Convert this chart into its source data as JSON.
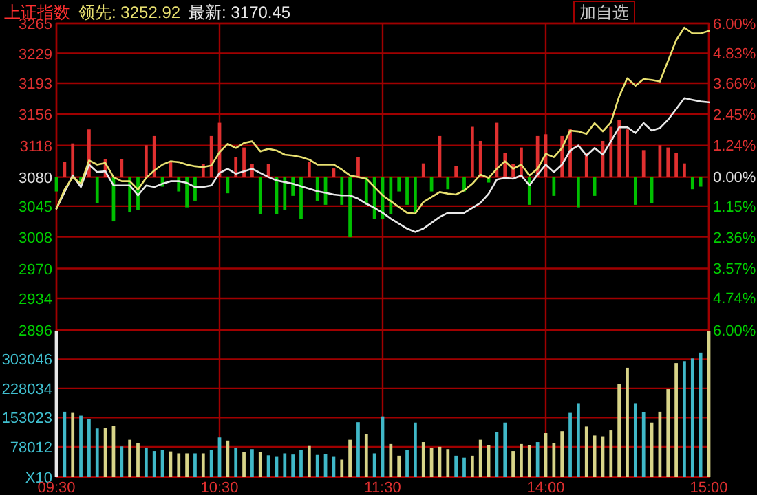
{
  "chart_data": [
    {
      "type": "line",
      "title": "上证指数",
      "annotations": [
        "领先: 3252.92",
        "最新: 3170.45",
        "加自选"
      ],
      "categories": [
        null,
        null,
        null,
        null,
        null,
        null,
        null,
        null,
        null,
        null,
        null,
        null,
        null,
        null,
        null,
        null,
        null,
        null,
        null,
        null,
        null,
        null,
        null,
        null,
        null,
        null,
        null,
        null,
        null,
        null,
        null,
        null,
        null,
        null,
        null,
        null,
        null,
        null,
        null,
        null,
        null,
        null,
        null,
        null,
        null,
        null,
        null,
        null,
        null,
        null,
        null,
        null,
        null,
        null,
        null,
        null,
        null,
        null,
        null,
        null,
        null,
        null,
        null,
        null,
        null,
        null,
        null,
        null,
        null,
        null,
        null,
        null,
        null,
        null,
        null,
        null,
        null,
        null,
        null,
        null,
        null
      ],
      "ylim": [
        2896,
        3265
      ],
      "yticks": [
        3265,
        3229,
        3193,
        3156,
        3118,
        3080,
        3045,
        3008,
        2970,
        2934,
        2896
      ],
      "y2lim": [
        -6,
        6
      ],
      "y2ticks": [
        {
          "value": 6,
          "label": "6.00%"
        },
        {
          "value": 4.83,
          "label": "4.83%"
        },
        {
          "value": 3.66,
          "label": "3.66%"
        },
        {
          "value": 2.45,
          "label": "2.45%"
        },
        {
          "value": 1.24,
          "label": "1.24%"
        },
        {
          "value": 0,
          "label": "0.00%"
        },
        {
          "value": -1.15,
          "label": "1.15%"
        },
        {
          "value": -2.36,
          "label": "2.36%"
        },
        {
          "value": -3.57,
          "label": "3.57%"
        },
        {
          "value": -4.74,
          "label": "4.74%"
        },
        {
          "value": -6,
          "label": "6.00%"
        }
      ],
      "tick_labels": "y",
      "grid": true,
      "series": [
        {
          "type": "bar",
          "axis": "y2",
          "values": [
            -0.58,
            0.58,
            1.3,
            -0.29,
            1.85,
            -1.04,
            0.68,
            -1.75,
            0.68,
            -1.4,
            -1.3,
            1.23,
            1.59,
            -0.39,
            0.58,
            -0.58,
            -1.2,
            -0.94,
            0.49,
            1.59,
            2.11,
            -0.65,
            0.78,
            1.14,
            0.49,
            -1.46,
            0.49,
            -1.46,
            -1.3,
            -0.75,
            -1.66,
            0.58,
            -0.94,
            -1.1,
            0.32,
            -1.1,
            -2.37,
            0.78,
            -1.1,
            -1.66,
            -1.66,
            -1.46,
            -0.58,
            -1.1,
            -1.4,
            0.52,
            -0.58,
            1.59,
            -0.49,
            0.42,
            -0.58,
            1.95,
            1.4,
            -0.23,
            2.11,
            0.94,
            0.49,
            1.14,
            -1.1,
            1.59,
            1.66,
            -0.75,
            1.59,
            1.85,
            -1.2,
            0.94,
            -0.75,
            1.4,
            1.95,
            2.21,
            1.85,
            -1.1,
            1.04,
            -1.04,
            1.23,
            1.14,
            0.94,
            0.52,
            -0.49,
            -0.39,
            null
          ],
          "colors": [
            "#00c000",
            "#e03030",
            "#e03030",
            "#00c000",
            "#e03030",
            "#00c000",
            "#e03030",
            "#00c000",
            "#e03030",
            "#00c000",
            "#00c000",
            "#e03030",
            "#e03030",
            "#00c000",
            "#e03030",
            "#00c000",
            "#00c000",
            "#00c000",
            "#e03030",
            "#e03030",
            "#e03030",
            "#00c000",
            "#e03030",
            "#e03030",
            "#e03030",
            "#00c000",
            "#e03030",
            "#00c000",
            "#00c000",
            "#00c000",
            "#00c000",
            "#e03030",
            "#00c000",
            "#00c000",
            "#e03030",
            "#00c000",
            "#00c000",
            "#e03030",
            "#00c000",
            "#00c000",
            "#00c000",
            "#00c000",
            "#00c000",
            "#00c000",
            "#00c000",
            "#e03030",
            "#00c000",
            "#e03030",
            "#00c000",
            "#e03030",
            "#00c000",
            "#e03030",
            "#e03030",
            "#00c000",
            "#e03030",
            "#e03030",
            "#e03030",
            "#e03030",
            "#00c000",
            "#e03030",
            "#e03030",
            "#00c000",
            "#e03030",
            "#e03030",
            "#00c000",
            "#e03030",
            "#00c000",
            "#e03030",
            "#e03030",
            "#e03030",
            "#e03030",
            "#00c000",
            "#e03030",
            "#00c000",
            "#e03030",
            "#e03030",
            "#e03030",
            "#e03030",
            "#00c000",
            "#00c000",
            null
          ]
        },
        {
          "color": "#e8e8e8",
          "values": [
            3042,
            3062,
            3082,
            3068,
            3095,
            3086,
            3087,
            3070,
            3070,
            3070,
            3058,
            3070,
            3068,
            3072,
            3075,
            3075,
            3073,
            3068,
            3068,
            3070,
            3085,
            3090,
            3084,
            3087,
            3090,
            3085,
            3080,
            3076,
            3074,
            3072,
            3069,
            3066,
            3063,
            3061,
            3059,
            3058,
            3058,
            3054,
            3048,
            3043,
            3037,
            3030,
            3024,
            3018,
            3014,
            3018,
            3025,
            3032,
            3037,
            3037,
            3037,
            3043,
            3049,
            3060,
            3077,
            3079,
            3078,
            3082,
            3070,
            3083,
            3095,
            3086,
            3095,
            3112,
            3118,
            3106,
            3115,
            3107,
            3123,
            3140,
            3140,
            3133,
            3145,
            3136,
            3139,
            3149,
            3162,
            3175,
            3173,
            3171,
            3170
          ]
        },
        {
          "color": "#e8e070",
          "values": [
            3042,
            3065,
            3080,
            3072,
            3100,
            3095,
            3097,
            3080,
            3075,
            3075,
            3065,
            3079,
            3088,
            3095,
            3099,
            3098,
            3095,
            3093,
            3092,
            3094,
            3110,
            3120,
            3115,
            3121,
            3123,
            3111,
            3114,
            3112,
            3107,
            3106,
            3104,
            3101,
            3095,
            3095,
            3095,
            3089,
            3082,
            3080,
            3078,
            3068,
            3058,
            3051,
            3044,
            3037,
            3036,
            3050,
            3056,
            3062,
            3060,
            3059,
            3064,
            3072,
            3083,
            3079,
            3090,
            3099,
            3090,
            3095,
            3082,
            3090,
            3108,
            3104,
            3115,
            3136,
            3135,
            3132,
            3145,
            3135,
            3146,
            3177,
            3199,
            3190,
            3198,
            3197,
            3195,
            3220,
            3245,
            3260,
            3253,
            3253,
            3256
          ]
        }
      ]
    },
    {
      "type": "bar",
      "categories": [
        "09:30",
        null,
        null,
        null,
        null,
        null,
        null,
        null,
        null,
        null,
        null,
        null,
        null,
        null,
        null,
        null,
        null,
        null,
        null,
        null,
        "10:30",
        null,
        null,
        null,
        null,
        null,
        null,
        null,
        null,
        null,
        null,
        null,
        null,
        null,
        null,
        null,
        null,
        null,
        null,
        null,
        "11:30",
        null,
        null,
        null,
        null,
        null,
        null,
        null,
        null,
        null,
        null,
        null,
        null,
        null,
        null,
        null,
        null,
        null,
        null,
        null,
        "14:00",
        null,
        null,
        null,
        null,
        null,
        null,
        null,
        null,
        null,
        null,
        null,
        null,
        null,
        null,
        null,
        null,
        null,
        null,
        null,
        "15:00"
      ],
      "ylim": [
        0,
        378000
      ],
      "yticks": [
        {
          "value": 0,
          "label": "X10"
        },
        78012,
        153023,
        228034,
        303046
      ],
      "grid": true,
      "values": [
        376000,
        168000,
        165000,
        158000,
        150000,
        125000,
        126000,
        132000,
        79000,
        96000,
        87000,
        76000,
        67000,
        70000,
        66000,
        61000,
        61000,
        61000,
        61000,
        70000,
        102000,
        94000,
        76000,
        64000,
        72000,
        64000,
        56000,
        52000,
        61000,
        58000,
        70000,
        80000,
        57000,
        60000,
        52000,
        45000,
        96000,
        141000,
        110000,
        61000,
        156000,
        85000,
        55000,
        70000,
        140000,
        90000,
        75000,
        78000,
        72000,
        55000,
        50000,
        55000,
        96000,
        83000,
        115000,
        140000,
        67000,
        85000,
        82000,
        90000,
        113000,
        87000,
        118000,
        165000,
        190000,
        130000,
        107000,
        105000,
        120000,
        240000,
        281000,
        190000,
        167000,
        140000,
        168000,
        226000,
        293000,
        298000,
        305000,
        320000,
        376000
      ],
      "colors": [
        "#e8e8e8",
        "#40b8c8",
        "#d8d488",
        "#40b8c8",
        "#40b8c8",
        "#40b8c8",
        "#d8d488",
        "#d8d488",
        "#40b8c8",
        "#d8d488",
        "#d8d488",
        "#40b8c8",
        "#40b8c8",
        "#40b8c8",
        "#d8d488",
        "#d8d488",
        "#d8d488",
        "#40b8c8",
        "#d8d488",
        "#40b8c8",
        "#40b8c8",
        "#d8d488",
        "#40b8c8",
        "#d8d488",
        "#40b8c8",
        "#d8d488",
        "#40b8c8",
        "#40b8c8",
        "#40b8c8",
        "#40b8c8",
        "#40b8c8",
        "#d8d488",
        "#40b8c8",
        "#40b8c8",
        "#40b8c8",
        "#d8d488",
        "#d8d488",
        "#40b8c8",
        "#d8d488",
        "#40b8c8",
        "#40b8c8",
        "#d8d488",
        "#d8d488",
        "#40b8c8",
        "#40b8c8",
        "#d8d488",
        "#d8d488",
        "#d8d488",
        "#d8d488",
        "#40b8c8",
        "#40b8c8",
        "#d8d488",
        "#d8d488",
        "#d8d488",
        "#40b8c8",
        "#40b8c8",
        "#d8d488",
        "#d8d488",
        "#d8d488",
        "#40b8c8",
        "#d8d488",
        "#d8d488",
        "#d8d488",
        "#40b8c8",
        "#40b8c8",
        "#d8d488",
        "#d8d488",
        "#d8d488",
        "#d8d488",
        "#d8d488",
        "#d8d488",
        "#40b8c8",
        "#40b8c8",
        "#d8d488",
        "#d8d488",
        "#d8d488",
        "#d8d488",
        "#40b8c8",
        "#40b8c8",
        "#40b8c8",
        "#d8d488"
      ]
    }
  ]
}
